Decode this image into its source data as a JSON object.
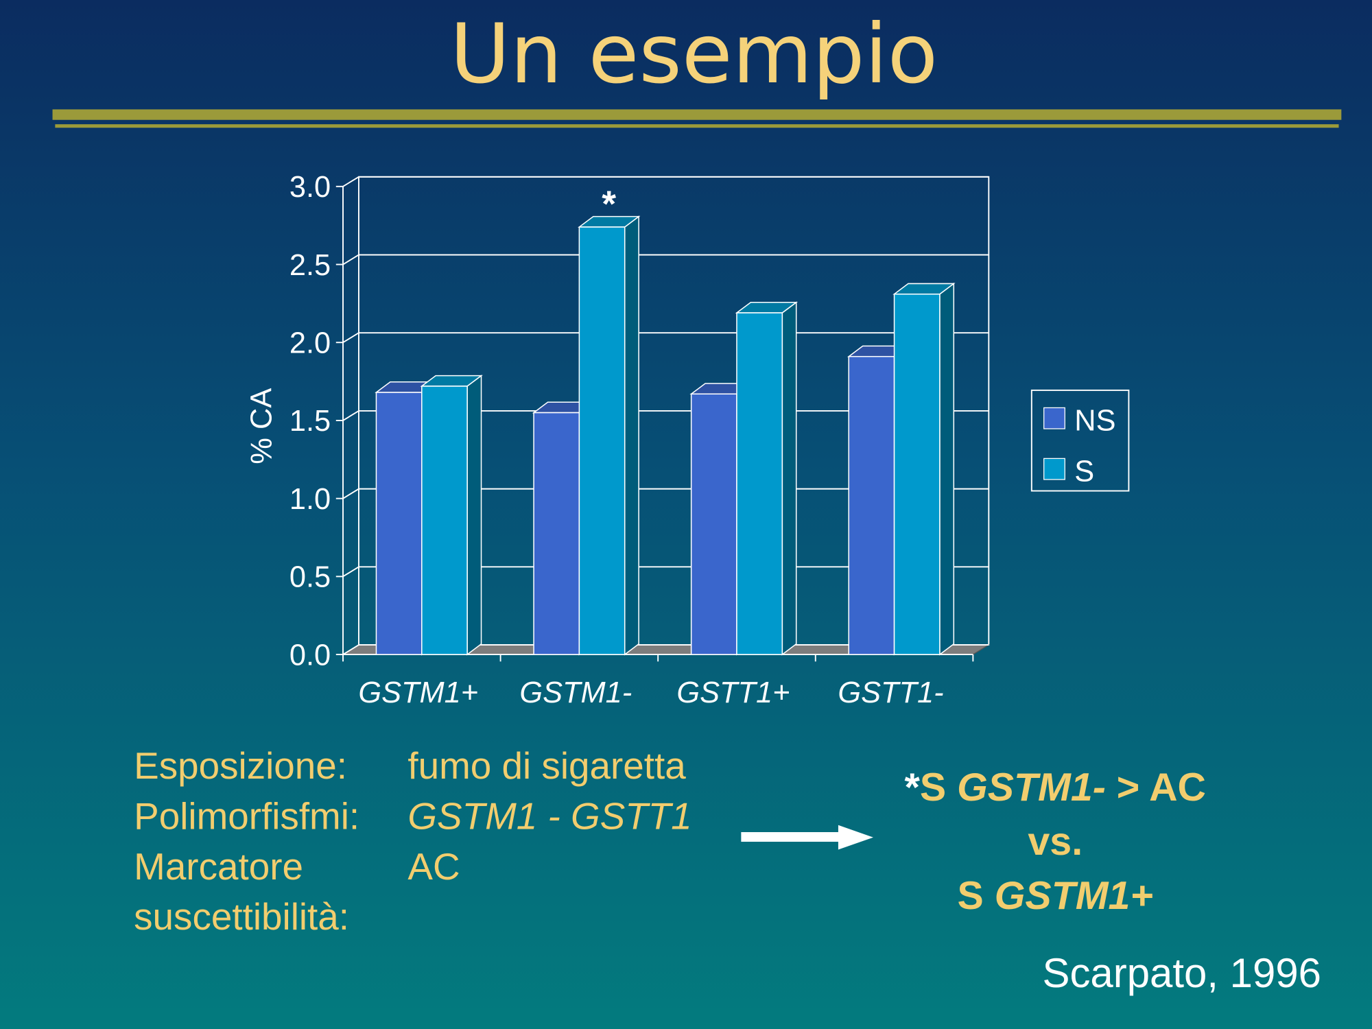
{
  "title": "Un esempio",
  "chart_data": {
    "type": "bar3d",
    "categories": [
      "GSTM1+",
      "GSTM1-",
      "GSTT1+",
      "GSTT1-"
    ],
    "series": [
      {
        "name": "NS",
        "color": "#3a66cc",
        "values": [
          1.68,
          1.55,
          1.67,
          1.91
        ]
      },
      {
        "name": "S",
        "color": "#0099cc",
        "values": [
          1.72,
          2.74,
          2.19,
          2.31
        ]
      }
    ],
    "y_label": "% CA",
    "ylim": [
      0,
      3
    ],
    "yticks": [
      {
        "value": 0,
        "label": "0.0"
      },
      0.5,
      {
        "value": 1,
        "label": "1.0"
      },
      1.5,
      {
        "value": 2,
        "label": "2.0"
      },
      2.5,
      {
        "value": 3,
        "label": "3.0"
      }
    ],
    "grid": true,
    "legend": "right",
    "annotation": {
      "text": "*",
      "series": 1,
      "category": 1
    }
  },
  "details": [
    {
      "label": [
        "Esposizione:"
      ],
      "value": "fumo di sigaretta"
    },
    {
      "label": [
        "Polimorfisfmi:"
      ],
      "value": "GSTM1 - GSTT1"
    },
    {
      "label": [
        "Marcatore",
        "suscettibilità:"
      ],
      "value": "AC"
    }
  ],
  "conclusion": [
    [
      "*",
      "S",
      "GSTM1-",
      "> AC"
    ],
    [
      "vs."
    ],
    [
      "S",
      "GSTM1+"
    ]
  ],
  "citation": "Scarpato, 1996"
}
